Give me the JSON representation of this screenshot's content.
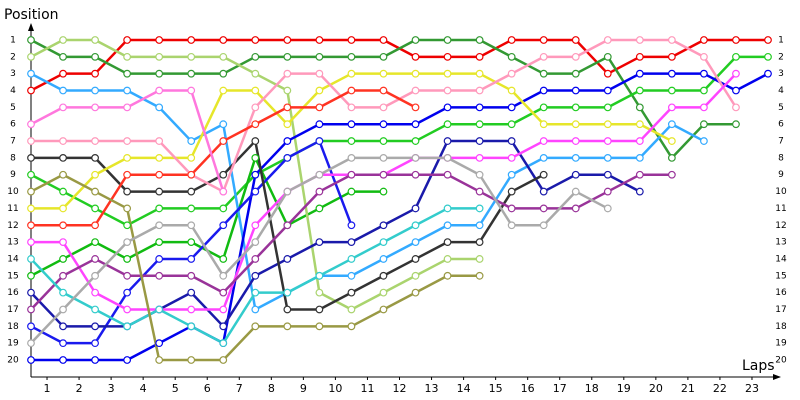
{
  "chart_data": {
    "type": "line",
    "y_label": "Position",
    "x_label": "Laps",
    "x": [
      0,
      1,
      2,
      3,
      4,
      5,
      6,
      7,
      8,
      9,
      10,
      11,
      12,
      13,
      14,
      15,
      16,
      17,
      18,
      19,
      20,
      21,
      22,
      23
    ],
    "xlim": [
      0,
      23
    ],
    "xticks": [
      {
        "value": 0.5,
        "label": "1"
      },
      {
        "value": 1.5,
        "label": "2"
      },
      {
        "value": 2.5,
        "label": "3"
      },
      {
        "value": 3.5,
        "label": "4"
      },
      {
        "value": 4.5,
        "label": "5"
      },
      {
        "value": 5.5,
        "label": "6"
      },
      {
        "value": 6.5,
        "label": "7"
      },
      {
        "value": 7.5,
        "label": "8"
      },
      {
        "value": 8.5,
        "label": "9"
      },
      {
        "value": 9.5,
        "label": "10"
      },
      {
        "value": 10.5,
        "label": "11"
      },
      {
        "value": 11.5,
        "label": "12"
      },
      {
        "value": 12.5,
        "label": "13"
      },
      {
        "value": 13.5,
        "label": "14"
      },
      {
        "value": 14.5,
        "label": "15"
      },
      {
        "value": 15.5,
        "label": "16"
      },
      {
        "value": 16.5,
        "label": "17"
      },
      {
        "value": 17.5,
        "label": "18"
      },
      {
        "value": 18.5,
        "label": "19"
      },
      {
        "value": 19.5,
        "label": "20"
      },
      {
        "value": 20.5,
        "label": "21"
      },
      {
        "value": 21.5,
        "label": "22"
      },
      {
        "value": 22.5,
        "label": "23"
      }
    ],
    "ylim": [
      20,
      1
    ],
    "yticks": [
      1,
      2,
      3,
      4,
      5,
      6,
      7,
      8,
      9,
      10,
      11,
      12,
      13,
      14,
      15,
      16,
      17,
      18,
      19,
      20
    ],
    "series": [
      {
        "color": "#ee0000",
        "values": [
          4,
          3,
          3,
          1,
          1,
          1,
          1,
          1,
          1,
          1,
          1,
          1,
          2,
          2,
          2,
          1,
          1,
          1,
          3,
          2,
          2,
          1,
          1,
          1
        ]
      },
      {
        "color": "#339933",
        "values": [
          1,
          2,
          2,
          3,
          3,
          3,
          3,
          2,
          2,
          2,
          2,
          2,
          1,
          1,
          1,
          2,
          3,
          3,
          2,
          5,
          8,
          6,
          6,
          null
        ]
      },
      {
        "color": "#22cc22",
        "values": [
          9,
          10,
          11,
          12,
          11,
          11,
          11,
          9,
          8,
          7,
          7,
          7,
          7,
          6,
          6,
          6,
          5,
          5,
          5,
          4,
          4,
          4,
          2,
          2
        ]
      },
      {
        "color": "#11bb11",
        "values": [
          15,
          14,
          13,
          14,
          13,
          13,
          14,
          8,
          12,
          11,
          10,
          10,
          null,
          null,
          null,
          null,
          null,
          null,
          null,
          null,
          null,
          null,
          null,
          null
        ]
      },
      {
        "color": "#aad46e",
        "values": [
          2,
          1,
          1,
          2,
          2,
          2,
          2,
          3,
          4,
          16,
          17,
          16,
          15,
          14,
          14,
          null,
          null,
          null,
          null,
          null,
          null,
          null,
          null,
          null
        ]
      },
      {
        "color": "#33aaff",
        "values": [
          3,
          4,
          4,
          4,
          5,
          7,
          6,
          17,
          16,
          15,
          15,
          14,
          13,
          12,
          12,
          9,
          8,
          8,
          8,
          8,
          6,
          7,
          null,
          null
        ]
      },
      {
        "color": "#0000ee",
        "values": [
          20,
          20,
          20,
          20,
          19,
          18,
          19,
          9,
          7,
          6,
          6,
          6,
          6,
          5,
          5,
          5,
          4,
          4,
          4,
          3,
          3,
          3,
          4,
          3
        ]
      },
      {
        "color": "#1a1aee",
        "values": [
          18,
          19,
          19,
          16,
          14,
          14,
          12,
          10,
          8,
          7,
          12,
          null,
          null,
          null,
          null,
          null,
          null,
          null,
          null,
          null,
          null,
          null,
          null,
          null
        ]
      },
      {
        "color": "#1a1aaa",
        "values": [
          16,
          18,
          18,
          18,
          17,
          16,
          18,
          15,
          14,
          13,
          13,
          12,
          11,
          7,
          7,
          7,
          10,
          9,
          9,
          10,
          null,
          null,
          null,
          null
        ]
      },
      {
        "color": "#333333",
        "values": [
          8,
          8,
          8,
          10,
          10,
          10,
          9,
          7,
          17,
          17,
          16,
          15,
          14,
          13,
          13,
          10,
          9,
          null,
          null,
          null,
          null,
          null,
          null,
          null
        ]
      },
      {
        "color": "#e6e62a",
        "values": [
          11,
          11,
          9,
          8,
          8,
          8,
          4,
          4,
          6,
          4,
          3,
          3,
          3,
          3,
          3,
          4,
          6,
          6,
          6,
          6,
          7,
          null,
          null,
          null
        ]
      },
      {
        "color": "#ff99bb",
        "values": [
          7,
          7,
          7,
          7,
          7,
          9,
          10,
          5,
          3,
          3,
          5,
          5,
          4,
          4,
          4,
          3,
          2,
          2,
          1,
          1,
          1,
          2,
          5,
          null
        ]
      },
      {
        "color": "#ff44ff",
        "values": [
          13,
          13,
          16,
          17,
          17,
          17,
          17,
          12,
          10,
          9,
          9,
          9,
          8,
          8,
          8,
          8,
          7,
          7,
          7,
          7,
          5,
          5,
          3,
          null
        ]
      },
      {
        "color": "#993399",
        "values": [
          17,
          15,
          14,
          15,
          15,
          15,
          16,
          14,
          12,
          10,
          9,
          9,
          9,
          9,
          10,
          11,
          11,
          11,
          10,
          9,
          9,
          null,
          null,
          null
        ]
      },
      {
        "color": "#ff3322",
        "values": [
          12,
          12,
          12,
          9,
          9,
          9,
          7,
          6,
          5,
          5,
          4,
          4,
          5,
          null,
          null,
          null,
          null,
          null,
          null,
          null,
          null,
          null,
          null,
          null
        ]
      },
      {
        "color": "#ff77dd",
        "values": [
          6,
          5,
          5,
          5,
          4,
          4,
          10,
          null,
          null,
          null,
          null,
          null,
          null,
          null,
          null,
          null,
          null,
          null,
          null,
          null,
          null,
          null,
          null,
          null
        ]
      },
      {
        "color": "#33cccc",
        "values": [
          14,
          16,
          17,
          18,
          17,
          18,
          19,
          16,
          16,
          15,
          14,
          13,
          12,
          11,
          11,
          null,
          null,
          null,
          null,
          null,
          null,
          null,
          null,
          null
        ]
      },
      {
        "color": "#999944",
        "values": [
          10,
          9,
          10,
          11,
          20,
          20,
          20,
          18,
          18,
          18,
          18,
          17,
          16,
          15,
          15,
          null,
          null,
          null,
          null,
          null,
          null,
          null,
          null,
          null
        ]
      },
      {
        "color": "#aaaaaa",
        "values": [
          19,
          17,
          15,
          13,
          12,
          12,
          15,
          13,
          10,
          9,
          8,
          8,
          8,
          8,
          9,
          12,
          12,
          10,
          11,
          null,
          null,
          null,
          null,
          null
        ]
      }
    ]
  }
}
